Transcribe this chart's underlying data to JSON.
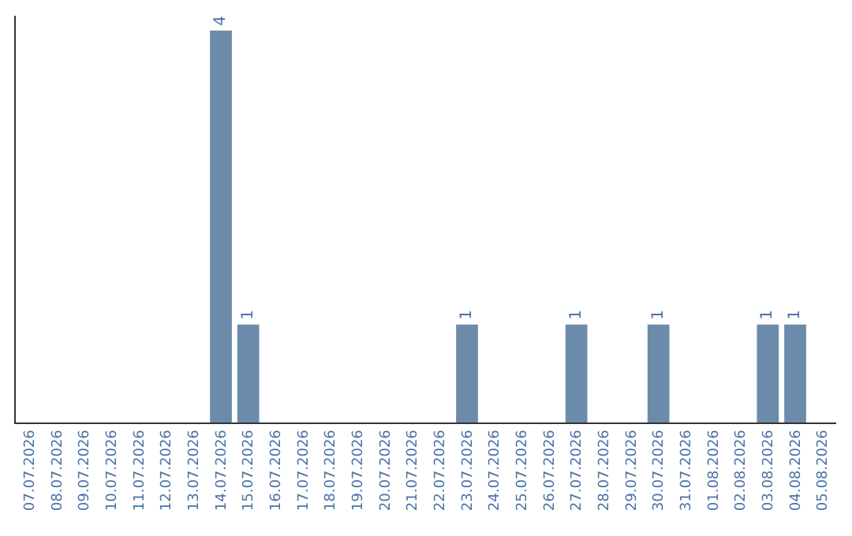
{
  "chart_data": {
    "type": "bar",
    "categories": [
      "07.07.2026",
      "08.07.2026",
      "09.07.2026",
      "10.07.2026",
      "11.07.2026",
      "12.07.2026",
      "13.07.2026",
      "14.07.2026",
      "15.07.2026",
      "16.07.2026",
      "17.07.2026",
      "18.07.2026",
      "19.07.2026",
      "20.07.2026",
      "21.07.2026",
      "22.07.2026",
      "23.07.2026",
      "24.07.2026",
      "25.07.2026",
      "26.07.2026",
      "27.07.2026",
      "28.07.2026",
      "29.07.2026",
      "30.07.2026",
      "31.07.2026",
      "01.08.2026",
      "02.08.2026",
      "03.08.2026",
      "04.08.2026",
      "05.08.2026"
    ],
    "values": [
      0,
      0,
      0,
      0,
      0,
      0,
      0,
      4,
      1,
      0,
      0,
      0,
      0,
      0,
      0,
      0,
      1,
      0,
      0,
      0,
      1,
      0,
      0,
      1,
      0,
      0,
      0,
      1,
      1,
      0
    ],
    "value_labels": [
      null,
      null,
      null,
      null,
      null,
      null,
      null,
      "4",
      "1",
      null,
      null,
      null,
      null,
      null,
      null,
      null,
      "1",
      null,
      null,
      null,
      "1",
      null,
      null,
      "1",
      null,
      null,
      null,
      "1",
      "1",
      null
    ],
    "color": "#6c8bab",
    "ylim": [
      0,
      4.15
    ],
    "tick_labels": "x",
    "legend": false
  }
}
